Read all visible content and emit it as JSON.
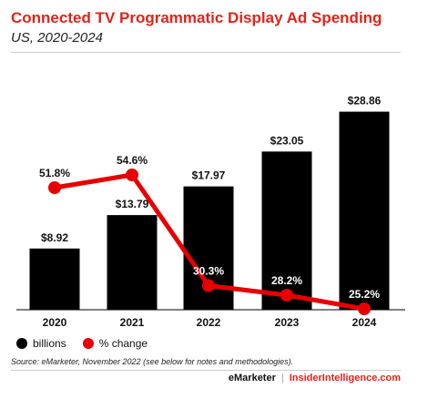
{
  "colors": {
    "title": "#e2231a",
    "bar": "#000000",
    "line": "#e60000",
    "text": "#111111"
  },
  "chart_data": {
    "type": "bar",
    "title": "Connected TV Programmatic Display Ad Spending",
    "subtitle": "US, 2020-2024",
    "categories": [
      "2020",
      "2021",
      "2022",
      "2023",
      "2024"
    ],
    "series": [
      {
        "name": "billions",
        "type": "bar",
        "values": [
          8.92,
          13.79,
          17.97,
          23.05,
          28.86
        ],
        "labels": [
          "$8.92",
          "$13.79",
          "$17.97",
          "$23.05",
          "$28.86"
        ]
      },
      {
        "name": "% change",
        "type": "line",
        "values": [
          51.8,
          54.6,
          30.3,
          28.2,
          25.2
        ],
        "labels": [
          "51.8%",
          "54.6%",
          "30.3%",
          "28.2%",
          "25.2%"
        ]
      }
    ],
    "ylim": [
      0,
      30
    ],
    "y2lim": [
      15,
      65
    ],
    "grid": false,
    "legend": "bottom-left"
  },
  "source": "Source: eMarketer, November 2022 (see below for notes and methodologies).",
  "footer": {
    "brand": "eMarketer",
    "separator": "|",
    "site": "InsiderIntelligence.com"
  }
}
